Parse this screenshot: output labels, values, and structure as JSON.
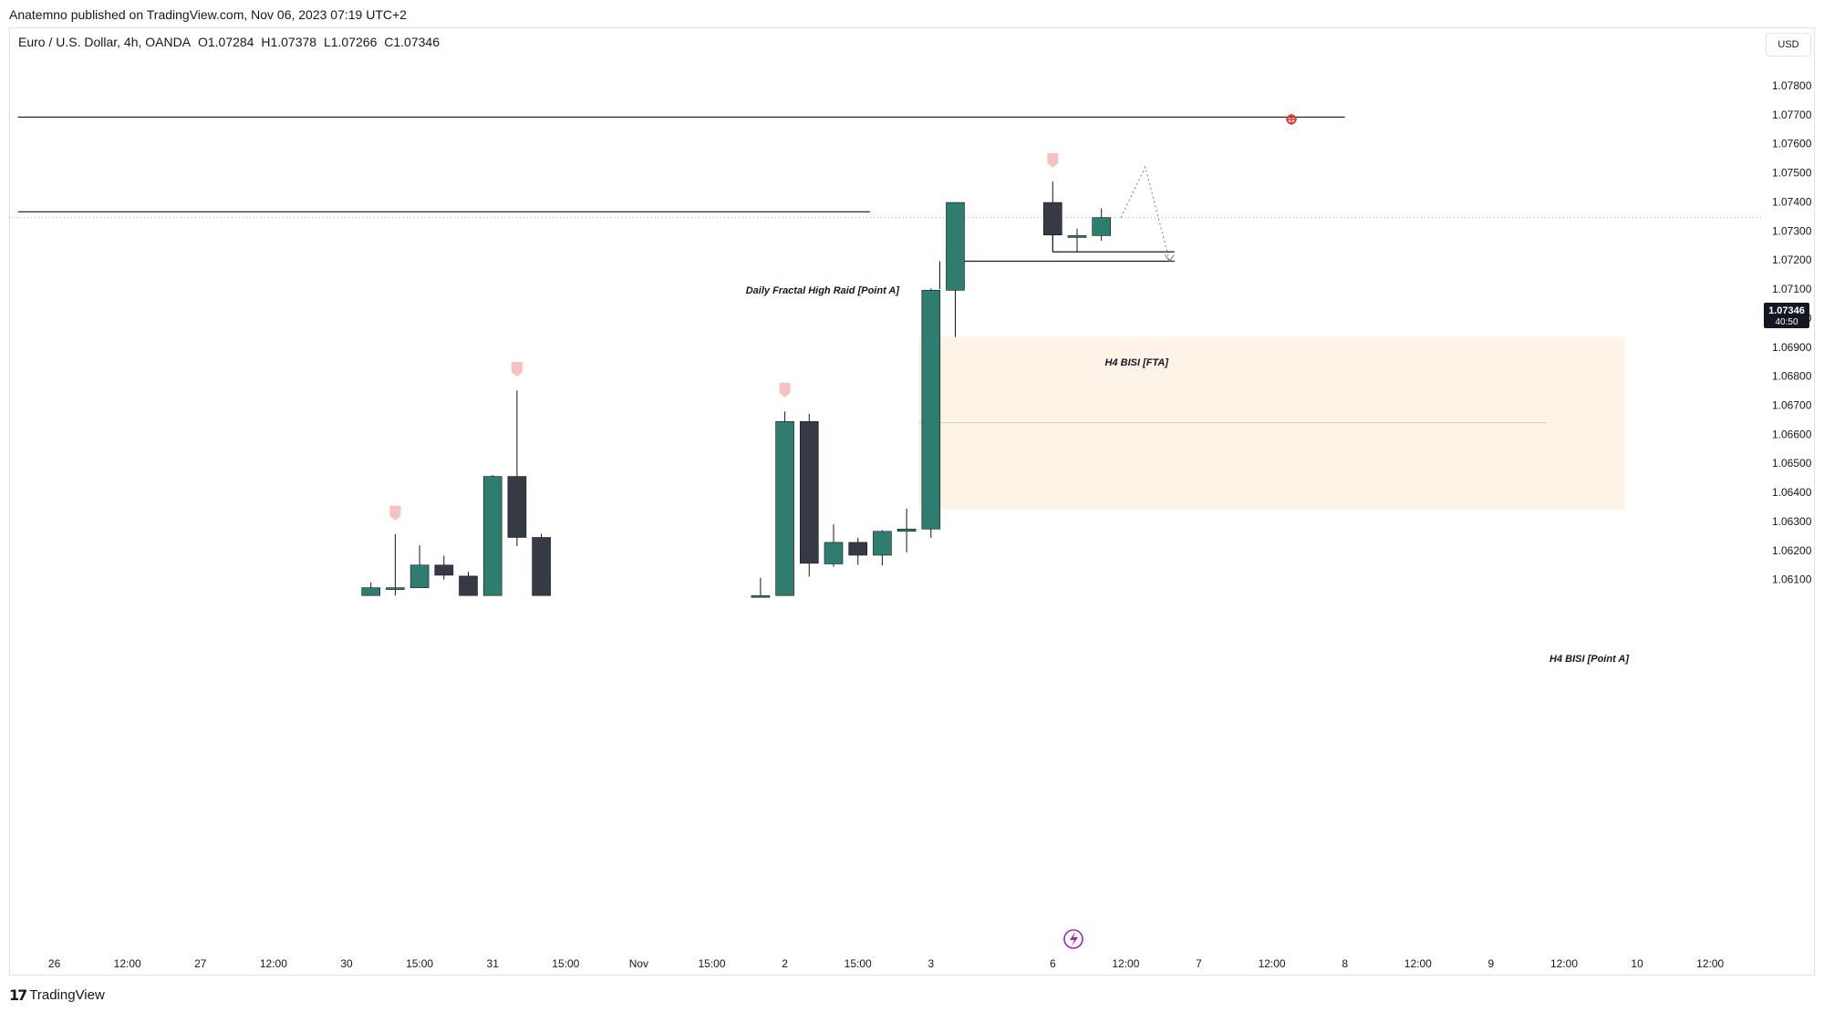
{
  "header": {
    "publisher": "Anatemno published on TradingView.com, Nov 06, 2023 07:19 UTC+2"
  },
  "legend": {
    "symbol": "Euro / U.S. Dollar, 4h, OANDA",
    "open": "O1.07284",
    "high": "H1.07378",
    "low": "L1.07266",
    "close": "C1.07346"
  },
  "currency_button": "USD",
  "price_axis": {
    "ticks": [
      "1.07800",
      "1.07700",
      "1.07600",
      "1.07500",
      "1.07400",
      "1.07300",
      "1.07200",
      "1.07100",
      "1.07000",
      "1.06900",
      "1.06800",
      "1.06700",
      "1.06600",
      "1.06500",
      "1.06400",
      "1.06300",
      "1.06200",
      "1.06100"
    ],
    "last_price": "1.07346",
    "countdown": "40:50"
  },
  "time_axis": {
    "labels": [
      {
        "t": "26",
        "i": -12
      },
      {
        "t": "12:00",
        "i": -9
      },
      {
        "t": "27",
        "i": -6
      },
      {
        "t": "12:00",
        "i": -3
      },
      {
        "t": "30",
        "i": 0
      },
      {
        "t": "15:00",
        "i": 3
      },
      {
        "t": "31",
        "i": 6
      },
      {
        "t": "15:00",
        "i": 9
      },
      {
        "t": "Nov",
        "i": 12
      },
      {
        "t": "15:00",
        "i": 15
      },
      {
        "t": "2",
        "i": 18
      },
      {
        "t": "15:00",
        "i": 21
      },
      {
        "t": "3",
        "i": 24
      },
      {
        "t": "6",
        "i": 29
      },
      {
        "t": "12:00",
        "i": 32
      },
      {
        "t": "7",
        "i": 35
      },
      {
        "t": "12:00",
        "i": 38
      },
      {
        "t": "8",
        "i": 41
      },
      {
        "t": "12:00",
        "i": 44
      },
      {
        "t": "9",
        "i": 47
      },
      {
        "t": "12:00",
        "i": 50
      },
      {
        "t": "10",
        "i": 53
      },
      {
        "t": "12:00",
        "i": 56
      }
    ]
  },
  "annotations": {
    "daily_fractal": "Daily Fractal High Raid [Point A]",
    "h4_bisi_fta": "H4 BISI [FTA]",
    "h4_bisi_point_a": "H4 BISI [Point A]"
  },
  "footer": {
    "logo_text": "TradingView"
  },
  "colors": {
    "bull": "#2e7d6f",
    "bear": "#363a45",
    "zone": "#fdf3e7",
    "fractal": "#f7c1c1"
  },
  "chart_data": {
    "type": "candlestick",
    "symbol": "EURUSD",
    "timeframe": "4h",
    "ylim": [
      1.0604,
      1.0788
    ],
    "candles": [
      {
        "i": 1,
        "o": 1.06045,
        "h": 1.0609,
        "l": 1.06045,
        "c": 1.06072
      },
      {
        "i": 2,
        "o": 1.0607,
        "h": 1.06256,
        "l": 1.06045,
        "c": 1.06072
      },
      {
        "i": 3,
        "o": 1.06072,
        "h": 1.06218,
        "l": 1.06072,
        "c": 1.0615
      },
      {
        "i": 4,
        "o": 1.0615,
        "h": 1.06182,
        "l": 1.061,
        "c": 1.06115
      },
      {
        "i": 5,
        "o": 1.06112,
        "h": 1.06127,
        "l": 1.06045,
        "c": 1.06045
      },
      {
        "i": 6,
        "o": 1.06045,
        "h": 1.0646,
        "l": 1.06045,
        "c": 1.06455
      },
      {
        "i": 7,
        "o": 1.06455,
        "h": 1.06751,
        "l": 1.06215,
        "c": 1.06245
      },
      {
        "i": 8,
        "o": 1.06245,
        "h": 1.06258,
        "l": 1.06045,
        "c": 1.06045
      },
      {
        "i": 17,
        "o": 1.06045,
        "h": 1.06106,
        "l": 1.06045,
        "c": 1.06045
      },
      {
        "i": 18,
        "o": 1.06045,
        "h": 1.06679,
        "l": 1.06045,
        "c": 1.06644
      },
      {
        "i": 19,
        "o": 1.06644,
        "h": 1.06671,
        "l": 1.0611,
        "c": 1.06156
      },
      {
        "i": 20,
        "o": 1.06154,
        "h": 1.0629,
        "l": 1.06144,
        "c": 1.06228
      },
      {
        "i": 21,
        "o": 1.06228,
        "h": 1.06244,
        "l": 1.06151,
        "c": 1.06184
      },
      {
        "i": 22,
        "o": 1.06184,
        "h": 1.0627,
        "l": 1.06149,
        "c": 1.06266
      },
      {
        "i": 23,
        "o": 1.06266,
        "h": 1.06344,
        "l": 1.06194,
        "c": 1.06274
      },
      {
        "i": 24,
        "o": 1.06274,
        "h": 1.07102,
        "l": 1.06244,
        "c": 1.07096
      },
      {
        "i": 25,
        "o": 1.07096,
        "h": 1.07398,
        "l": 1.06935,
        "c": 1.07398
      },
      {
        "i": 29,
        "o": 1.07398,
        "h": 1.0747,
        "l": 1.07228,
        "c": 1.07286
      },
      {
        "i": 30,
        "o": 1.07284,
        "h": 1.07308,
        "l": 1.07228,
        "c": 1.07284
      },
      {
        "i": 31,
        "o": 1.07284,
        "h": 1.07378,
        "l": 1.07266,
        "c": 1.07346
      }
    ],
    "fractal_markers": [
      {
        "i": 2,
        "price": 1.0626
      },
      {
        "i": 7,
        "price": 1.06755
      },
      {
        "i": 18,
        "price": 1.06683
      },
      {
        "i": 29,
        "price": 1.07474
      }
    ],
    "horizontal_lines": [
      {
        "price": 1.07692,
        "from_i": -13.5,
        "to_i": 41
      },
      {
        "price": 1.07366,
        "from_i": -13.5,
        "to_i": 21.5
      },
      {
        "price": 1.07228,
        "from_i": 29,
        "to_i": 34
      },
      {
        "price": 1.07196,
        "from_i": 25,
        "to_i": 34
      }
    ],
    "zone": {
      "price_top": 1.06936,
      "price_bottom": 1.06342,
      "from_i": 23.5,
      "to_i": 52.5,
      "mid": 1.0664
    },
    "projection": [
      {
        "i": 31.8,
        "price": 1.07346
      },
      {
        "i": 32.8,
        "price": 1.0752
      },
      {
        "i": 33.8,
        "price": 1.07196
      }
    ]
  }
}
